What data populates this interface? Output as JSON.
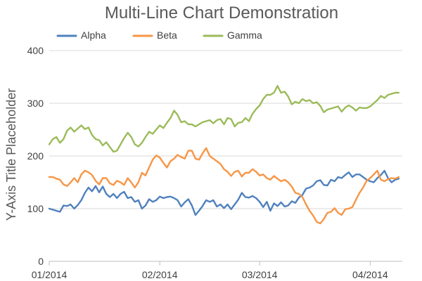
{
  "chart_data": {
    "type": "line",
    "title": "Multi-Line Chart Demonstration",
    "xlabel": "",
    "ylabel": "Y-Axis Title Placeholder",
    "ylim": [
      0,
      400
    ],
    "y_ticks": [
      0,
      100,
      200,
      300,
      400
    ],
    "x_tick_labels": [
      "01/2014",
      "02/2014",
      "03/2014",
      "04/2014"
    ],
    "x_tick_positions": [
      0,
      31,
      59,
      90
    ],
    "x_range": [
      0,
      99
    ],
    "grid": true,
    "legend_position": "top-left",
    "series": [
      {
        "name": "Alpha",
        "color": "#4f81bd",
        "points": [
          [
            0,
            100
          ],
          [
            2,
            96
          ],
          [
            3,
            94
          ],
          [
            4,
            106
          ],
          [
            5,
            105
          ],
          [
            6,
            108
          ],
          [
            7,
            100
          ],
          [
            8,
            107
          ],
          [
            9,
            116
          ],
          [
            10,
            130
          ],
          [
            11,
            140
          ],
          [
            12,
            133
          ],
          [
            13,
            143
          ],
          [
            14,
            131
          ],
          [
            15,
            142
          ],
          [
            16,
            128
          ],
          [
            17,
            122
          ],
          [
            18,
            128
          ],
          [
            19,
            120
          ],
          [
            20,
            128
          ],
          [
            21,
            132
          ],
          [
            22,
            120
          ],
          [
            23,
            122
          ],
          [
            24,
            113
          ],
          [
            25,
            116
          ],
          [
            26,
            100
          ],
          [
            27,
            106
          ],
          [
            28,
            118
          ],
          [
            29,
            113
          ],
          [
            30,
            116
          ],
          [
            31,
            123
          ],
          [
            32,
            120
          ],
          [
            33,
            122
          ],
          [
            34,
            123
          ],
          [
            35,
            120
          ],
          [
            36,
            116
          ],
          [
            37,
            104
          ],
          [
            38,
            112
          ],
          [
            39,
            118
          ],
          [
            40,
            106
          ],
          [
            41,
            88
          ],
          [
            42,
            96
          ],
          [
            43,
            105
          ],
          [
            44,
            116
          ],
          [
            45,
            113
          ],
          [
            46,
            116
          ],
          [
            47,
            104
          ],
          [
            48,
            108
          ],
          [
            49,
            101
          ],
          [
            50,
            108
          ],
          [
            51,
            99
          ],
          [
            52,
            108
          ],
          [
            53,
            117
          ],
          [
            54,
            130
          ],
          [
            55,
            122
          ],
          [
            56,
            121
          ],
          [
            57,
            124
          ],
          [
            58,
            120
          ],
          [
            59,
            113
          ],
          [
            60,
            103
          ],
          [
            61,
            113
          ],
          [
            62,
            96
          ],
          [
            63,
            110
          ],
          [
            64,
            105
          ],
          [
            65,
            112
          ],
          [
            66,
            104
          ],
          [
            67,
            106
          ],
          [
            68,
            114
          ],
          [
            69,
            111
          ],
          [
            70,
            121
          ],
          [
            71,
            126
          ],
          [
            72,
            138
          ],
          [
            73,
            140
          ],
          [
            74,
            144
          ],
          [
            75,
            152
          ],
          [
            76,
            154
          ],
          [
            77,
            145
          ],
          [
            78,
            144
          ],
          [
            79,
            155
          ],
          [
            80,
            152
          ],
          [
            81,
            160
          ],
          [
            82,
            158
          ],
          [
            83,
            164
          ],
          [
            84,
            169
          ],
          [
            85,
            160
          ],
          [
            86,
            165
          ],
          [
            87,
            165
          ],
          [
            88,
            160
          ],
          [
            89,
            155
          ],
          [
            90,
            152
          ],
          [
            91,
            150
          ],
          [
            92,
            158
          ],
          [
            93,
            164
          ],
          [
            94,
            172
          ],
          [
            95,
            158
          ],
          [
            96,
            150
          ],
          [
            97,
            155
          ],
          [
            98,
            157
          ]
        ]
      },
      {
        "name": "Beta",
        "color": "#f79646",
        "points": [
          [
            0,
            160
          ],
          [
            1,
            160
          ],
          [
            2,
            157
          ],
          [
            3,
            155
          ],
          [
            4,
            146
          ],
          [
            5,
            143
          ],
          [
            6,
            150
          ],
          [
            7,
            158
          ],
          [
            8,
            150
          ],
          [
            9,
            165
          ],
          [
            10,
            172
          ],
          [
            11,
            169
          ],
          [
            12,
            164
          ],
          [
            13,
            153
          ],
          [
            14,
            146
          ],
          [
            15,
            158
          ],
          [
            16,
            158
          ],
          [
            17,
            148
          ],
          [
            18,
            145
          ],
          [
            19,
            153
          ],
          [
            20,
            150
          ],
          [
            21,
            145
          ],
          [
            22,
            158
          ],
          [
            23,
            150
          ],
          [
            24,
            140
          ],
          [
            25,
            150
          ],
          [
            26,
            168
          ],
          [
            27,
            163
          ],
          [
            28,
            178
          ],
          [
            29,
            193
          ],
          [
            30,
            201
          ],
          [
            31,
            197
          ],
          [
            32,
            187
          ],
          [
            33,
            178
          ],
          [
            34,
            190
          ],
          [
            35,
            195
          ],
          [
            36,
            202
          ],
          [
            37,
            198
          ],
          [
            38,
            195
          ],
          [
            39,
            210
          ],
          [
            40,
            210
          ],
          [
            41,
            195
          ],
          [
            42,
            193
          ],
          [
            43,
            205
          ],
          [
            44,
            215
          ],
          [
            45,
            200
          ],
          [
            46,
            195
          ],
          [
            47,
            190
          ],
          [
            48,
            185
          ],
          [
            49,
            175
          ],
          [
            50,
            170
          ],
          [
            51,
            162
          ],
          [
            52,
            170
          ],
          [
            53,
            172
          ],
          [
            54,
            161
          ],
          [
            55,
            168
          ],
          [
            56,
            168
          ],
          [
            57,
            175
          ],
          [
            58,
            170
          ],
          [
            59,
            163
          ],
          [
            60,
            165
          ],
          [
            61,
            158
          ],
          [
            62,
            155
          ],
          [
            63,
            162
          ],
          [
            64,
            157
          ],
          [
            65,
            152
          ],
          [
            66,
            155
          ],
          [
            67,
            150
          ],
          [
            68,
            142
          ],
          [
            69,
            130
          ],
          [
            70,
            128
          ],
          [
            71,
            122
          ],
          [
            72,
            108
          ],
          [
            73,
            96
          ],
          [
            74,
            87
          ],
          [
            75,
            75
          ],
          [
            76,
            72
          ],
          [
            77,
            80
          ],
          [
            78,
            92
          ],
          [
            79,
            94
          ],
          [
            80,
            101
          ],
          [
            81,
            92
          ],
          [
            82,
            88
          ],
          [
            83,
            99
          ],
          [
            84,
            100
          ],
          [
            85,
            103
          ],
          [
            86,
            117
          ],
          [
            87,
            130
          ],
          [
            88,
            140
          ],
          [
            89,
            153
          ],
          [
            90,
            158
          ],
          [
            91,
            165
          ],
          [
            92,
            172
          ],
          [
            93,
            155
          ],
          [
            94,
            152
          ],
          [
            95,
            156
          ],
          [
            96,
            158
          ],
          [
            97,
            157
          ],
          [
            98,
            160
          ]
        ]
      },
      {
        "name": "Gamma",
        "color": "#9bbb59",
        "points": [
          [
            0,
            222
          ],
          [
            1,
            232
          ],
          [
            2,
            236
          ],
          [
            3,
            225
          ],
          [
            4,
            232
          ],
          [
            5,
            248
          ],
          [
            6,
            254
          ],
          [
            7,
            246
          ],
          [
            8,
            252
          ],
          [
            9,
            258
          ],
          [
            10,
            251
          ],
          [
            11,
            254
          ],
          [
            12,
            240
          ],
          [
            13,
            232
          ],
          [
            14,
            230
          ],
          [
            15,
            220
          ],
          [
            16,
            226
          ],
          [
            17,
            217
          ],
          [
            18,
            208
          ],
          [
            19,
            210
          ],
          [
            20,
            222
          ],
          [
            21,
            234
          ],
          [
            22,
            244
          ],
          [
            23,
            236
          ],
          [
            24,
            222
          ],
          [
            25,
            218
          ],
          [
            26,
            225
          ],
          [
            27,
            236
          ],
          [
            28,
            246
          ],
          [
            29,
            242
          ],
          [
            30,
            250
          ],
          [
            31,
            258
          ],
          [
            32,
            253
          ],
          [
            33,
            263
          ],
          [
            34,
            272
          ],
          [
            35,
            286
          ],
          [
            36,
            278
          ],
          [
            37,
            264
          ],
          [
            38,
            266
          ],
          [
            39,
            260
          ],
          [
            40,
            260
          ],
          [
            41,
            256
          ],
          [
            42,
            260
          ],
          [
            43,
            264
          ],
          [
            44,
            266
          ],
          [
            45,
            268
          ],
          [
            46,
            262
          ],
          [
            47,
            268
          ],
          [
            48,
            270
          ],
          [
            49,
            260
          ],
          [
            50,
            272
          ],
          [
            51,
            270
          ],
          [
            52,
            256
          ],
          [
            53,
            263
          ],
          [
            54,
            264
          ],
          [
            55,
            272
          ],
          [
            56,
            266
          ],
          [
            57,
            280
          ],
          [
            58,
            289
          ],
          [
            59,
            296
          ],
          [
            60,
            308
          ],
          [
            61,
            316
          ],
          [
            62,
            316
          ],
          [
            63,
            320
          ],
          [
            64,
            333
          ],
          [
            65,
            320
          ],
          [
            66,
            322
          ],
          [
            67,
            313
          ],
          [
            68,
            298
          ],
          [
            69,
            303
          ],
          [
            70,
            300
          ],
          [
            71,
            308
          ],
          [
            72,
            304
          ],
          [
            73,
            306
          ],
          [
            74,
            300
          ],
          [
            75,
            302
          ],
          [
            76,
            295
          ],
          [
            77,
            283
          ],
          [
            78,
            288
          ],
          [
            79,
            290
          ],
          [
            80,
            292
          ],
          [
            81,
            294
          ],
          [
            82,
            284
          ],
          [
            83,
            292
          ],
          [
            84,
            296
          ],
          [
            85,
            292
          ],
          [
            86,
            286
          ],
          [
            87,
            292
          ],
          [
            88,
            291
          ],
          [
            89,
            291
          ],
          [
            90,
            294
          ],
          [
            91,
            300
          ],
          [
            92,
            306
          ],
          [
            93,
            314
          ],
          [
            94,
            310
          ],
          [
            95,
            316
          ],
          [
            96,
            318
          ],
          [
            97,
            320
          ],
          [
            98,
            320
          ]
        ]
      }
    ]
  }
}
